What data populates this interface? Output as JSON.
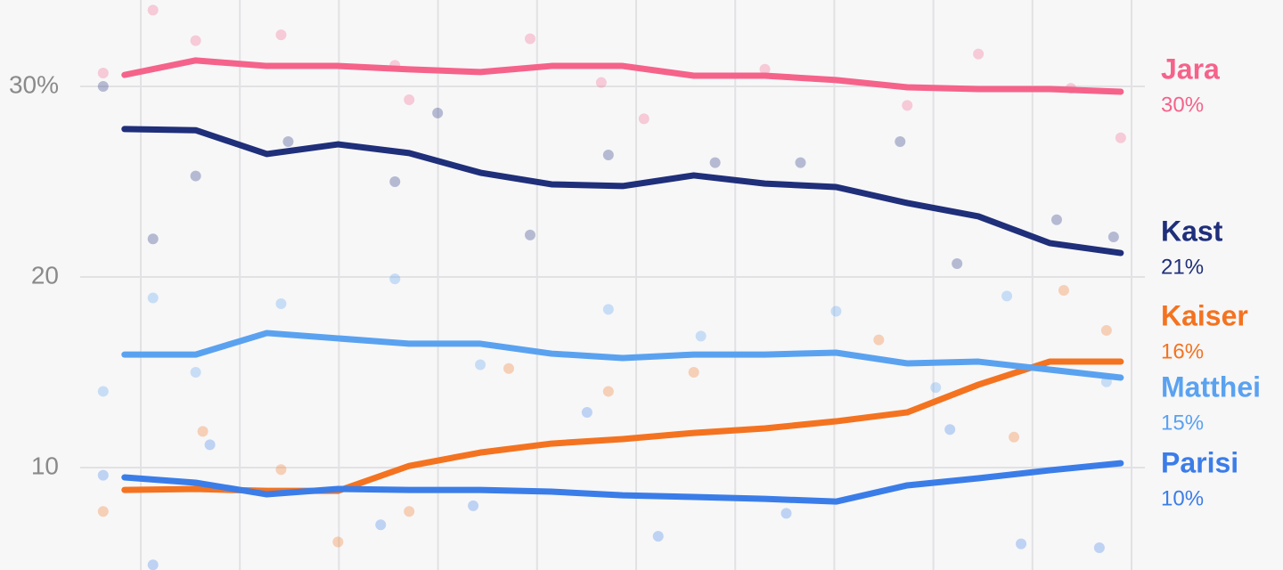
{
  "chart_data": {
    "type": "line",
    "x": [
      0,
      1,
      2,
      3,
      4,
      5,
      6,
      7,
      8,
      9,
      10,
      11,
      12,
      13,
      14
    ],
    "xlim": [
      -1.75,
      14.34
    ],
    "ylim": [
      4.63,
      34.53
    ],
    "yticks": [
      10,
      20,
      {
        "value": 30,
        "label": "30%"
      }
    ],
    "grid": true,
    "series": [
      {
        "name": "Jara",
        "color": "#f5638a",
        "values": [
          30.6,
          31.36,
          31.07,
          31.07,
          30.89,
          30.75,
          31.07,
          31.07,
          30.56,
          30.56,
          30.33,
          29.95,
          29.86,
          29.86,
          29.72
        ],
        "value_labels": [
          null,
          null,
          null,
          null,
          null,
          null,
          null,
          null,
          null,
          null,
          null,
          null,
          null,
          null,
          "30%"
        ],
        "polls": {
          "x": [
            -0.3,
            0.4,
            1.0,
            2.2,
            3.8,
            4.0,
            5.7,
            6.7,
            7.3,
            9.0,
            11.0,
            12.0,
            13.3,
            14.0
          ],
          "values": [
            30.7,
            34.0,
            32.4,
            32.7,
            31.1,
            29.3,
            32.5,
            30.2,
            28.3,
            30.9,
            29.0,
            31.7,
            29.9,
            27.3
          ]
        }
      },
      {
        "name": "Kast",
        "color": "#1f2f7a",
        "values": [
          27.76,
          27.7,
          26.45,
          26.96,
          26.5,
          25.47,
          24.86,
          24.77,
          25.33,
          24.9,
          24.72,
          23.88,
          23.18,
          21.78,
          21.26
        ],
        "value_labels": [
          null,
          null,
          null,
          null,
          null,
          null,
          null,
          null,
          null,
          null,
          null,
          null,
          null,
          null,
          "21%"
        ],
        "polls": {
          "x": [
            -0.3,
            0.4,
            1.0,
            2.3,
            3.8,
            4.4,
            5.7,
            6.8,
            8.3,
            9.5,
            10.9,
            11.7,
            13.1,
            13.9
          ],
          "values": [
            30.0,
            22.0,
            25.3,
            27.1,
            25.0,
            28.6,
            22.2,
            26.4,
            26.0,
            26.0,
            27.1,
            20.7,
            23.0,
            22.1
          ]
        }
      },
      {
        "name": "Kaiser",
        "color": "#f47320",
        "values": [
          8.83,
          8.88,
          8.78,
          8.78,
          10.09,
          10.79,
          11.26,
          11.5,
          11.82,
          12.06,
          12.43,
          12.9,
          14.35,
          15.56,
          15.56
        ],
        "value_labels": [
          null,
          null,
          null,
          null,
          null,
          null,
          null,
          null,
          null,
          null,
          null,
          null,
          null,
          null,
          "16%"
        ],
        "polls": {
          "x": [
            -0.3,
            1.1,
            2.2,
            3.0,
            4.0,
            5.4,
            6.8,
            8.0,
            10.6,
            12.5,
            13.2,
            13.8
          ],
          "values": [
            7.7,
            11.9,
            9.9,
            6.1,
            7.7,
            15.2,
            14.0,
            15.0,
            16.7,
            11.6,
            19.3,
            17.2
          ]
        }
      },
      {
        "name": "Matthei",
        "color": "#5aa2f0",
        "values": [
          15.93,
          15.93,
          17.06,
          16.78,
          16.5,
          16.5,
          15.98,
          15.75,
          15.93,
          15.93,
          16.03,
          15.47,
          15.56,
          15.14,
          14.72
        ],
        "value_labels": [
          null,
          null,
          null,
          null,
          null,
          null,
          null,
          null,
          null,
          null,
          null,
          null,
          null,
          null,
          "15%"
        ],
        "polls": {
          "x": [
            -0.3,
            0.4,
            1.0,
            2.2,
            3.8,
            5.0,
            6.8,
            8.1,
            10.0,
            11.4,
            12.4,
            13.8
          ],
          "values": [
            14.0,
            18.9,
            15.0,
            18.6,
            19.9,
            15.4,
            18.3,
            16.9,
            18.2,
            14.2,
            19.0,
            14.5
          ]
        }
      },
      {
        "name": "Parisi",
        "color": "#3b7de8",
        "values": [
          9.49,
          9.21,
          8.6,
          8.88,
          8.83,
          8.83,
          8.74,
          8.55,
          8.46,
          8.36,
          8.22,
          9.07,
          9.44,
          9.86,
          10.23
        ],
        "value_labels": [
          null,
          null,
          null,
          null,
          null,
          null,
          null,
          null,
          null,
          null,
          null,
          null,
          null,
          null,
          "10%"
        ],
        "polls": {
          "x": [
            -0.3,
            0.4,
            1.2,
            3.6,
            4.9,
            6.5,
            7.5,
            9.3,
            11.6,
            12.6,
            13.7
          ],
          "values": [
            9.6,
            4.9,
            11.2,
            7.0,
            8.0,
            12.9,
            6.4,
            7.6,
            12.0,
            6.0,
            5.8
          ]
        }
      }
    ]
  }
}
